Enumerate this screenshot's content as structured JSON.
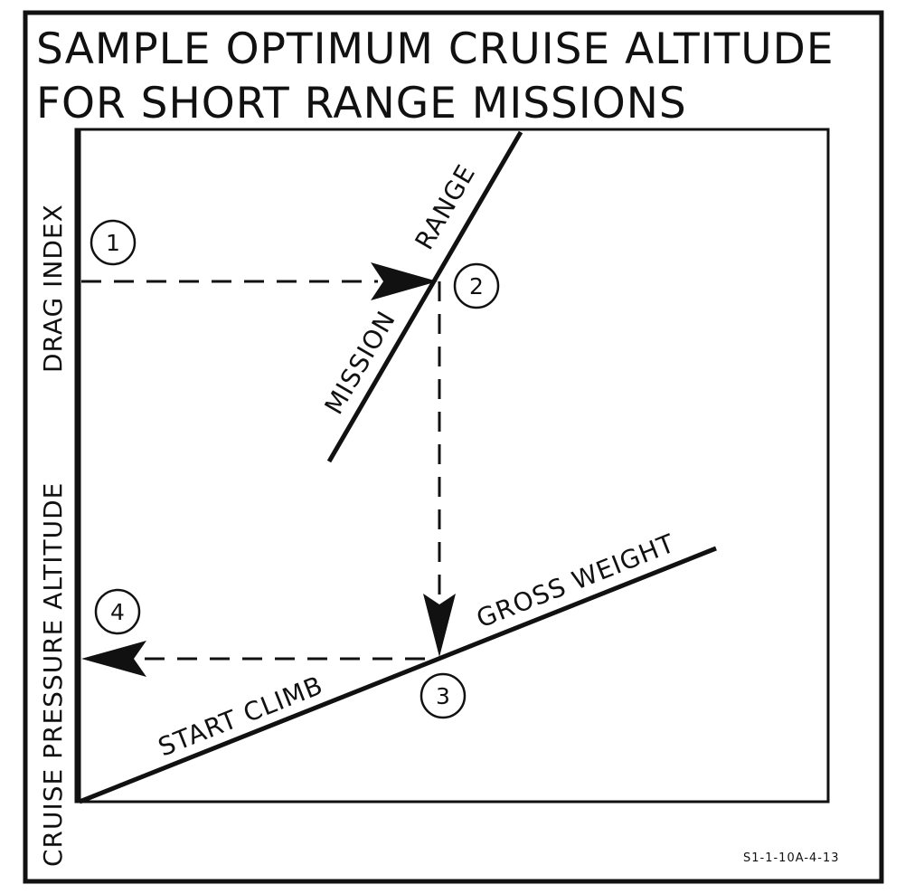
{
  "title": {
    "line1": "SAMPLE OPTIMUM CRUISE ALTITUDE",
    "line2": "FOR SHORT RANGE MISSIONS"
  },
  "axes": {
    "drag_index": "DRAG INDEX",
    "cruise_pressure_altitude": "CRUISE PRESSURE ALTITUDE"
  },
  "curves": {
    "mission": "MISSION",
    "range": "RANGE",
    "gross_weight": "GROSS WEIGHT",
    "start_climb": "START CLIMB"
  },
  "steps": [
    "1",
    "2",
    "3",
    "4"
  ],
  "figure_code": "S1-1-10A-4-13",
  "colors": {
    "ink": "#111111",
    "paper": "#ffffff"
  }
}
